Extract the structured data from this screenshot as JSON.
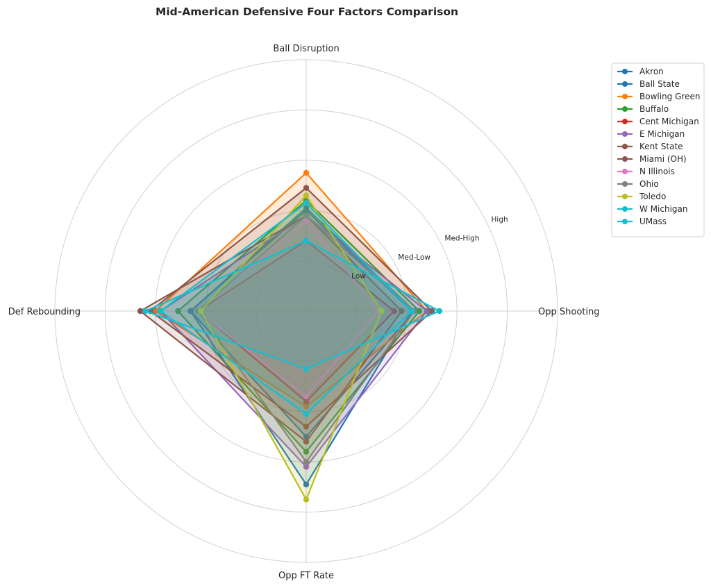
{
  "chart_data": {
    "type": "radar",
    "title": "Mid-American Defensive Four Factors Comparison",
    "axes": [
      "Ball Disruption",
      "Opp Shooting",
      "Opp FT Rate",
      "Def Rebounding"
    ],
    "rings": [
      {
        "value": 1,
        "label": "Low"
      },
      {
        "value": 2,
        "label": "Med-Low"
      },
      {
        "value": 3,
        "label": "Med-High"
      },
      {
        "value": 4,
        "label": "High"
      },
      {
        "value": 5,
        "label": ""
      }
    ],
    "range": [
      0,
      5
    ],
    "grid": true,
    "legend": "right",
    "series": [
      {
        "name": "Akron",
        "color": "#1f77b4",
        "values": [
          2.0,
          2.1,
          3.45,
          2.3
        ]
      },
      {
        "name": "Ball State",
        "color": "#1f77b4",
        "values": [
          2.05,
          2.15,
          2.5,
          2.3
        ]
      },
      {
        "name": "Bowling Green",
        "color": "#ff7f0e",
        "values": [
          2.75,
          2.4,
          1.9,
          3.0
        ]
      },
      {
        "name": "Buffalo",
        "color": "#2ca02c",
        "values": [
          2.2,
          2.25,
          2.8,
          2.55
        ]
      },
      {
        "name": "Cent Michigan",
        "color": "#d62728",
        "values": [
          1.4,
          1.75,
          1.8,
          2.15
        ]
      },
      {
        "name": "E Michigan",
        "color": "#9467bd",
        "values": [
          1.9,
          2.4,
          3.1,
          2.9
        ]
      },
      {
        "name": "Kent State",
        "color": "#8c564b",
        "values": [
          1.9,
          1.9,
          2.6,
          3.3
        ]
      },
      {
        "name": "Miami (OH)",
        "color": "#8c564b",
        "values": [
          2.45,
          2.5,
          2.3,
          3.1
        ]
      },
      {
        "name": "N Illinois",
        "color": "#e377c2",
        "values": [
          1.8,
          1.45,
          1.7,
          2.15
        ]
      },
      {
        "name": "Ohio",
        "color": "#7f7f7f",
        "values": [
          1.9,
          2.15,
          3.0,
          2.15
        ]
      },
      {
        "name": "Toledo",
        "color": "#bcbd22",
        "values": [
          2.3,
          1.5,
          3.75,
          2.1
        ]
      },
      {
        "name": "W Michigan",
        "color": "#17becf",
        "values": [
          2.15,
          2.1,
          2.05,
          2.9
        ]
      },
      {
        "name": "UMass",
        "color": "#17becf",
        "values": [
          1.4,
          2.65,
          1.15,
          3.2
        ]
      }
    ]
  }
}
